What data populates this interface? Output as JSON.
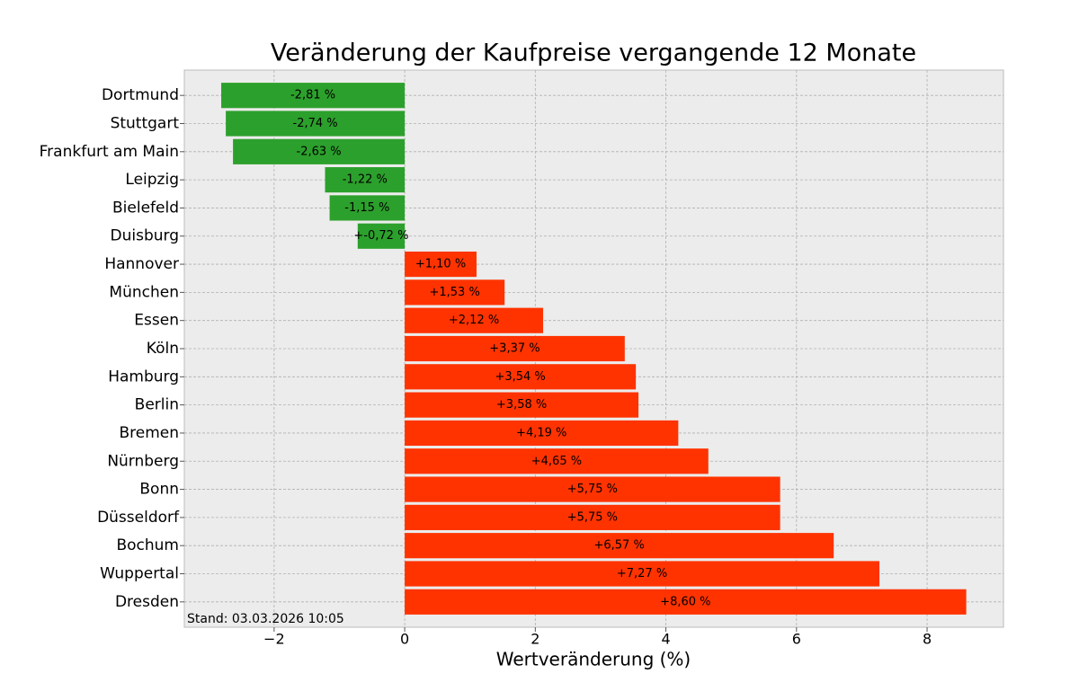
{
  "chart_data": {
    "type": "barh",
    "title": "Veränderung der Kaufpreise vergangende 12 Monate",
    "x_label": "Wertveränderung (%)",
    "annotation": "Stand: 03.03.2026 10:05",
    "categories": [
      "Dortmund",
      "Stuttgart",
      "Frankfurt am Main",
      "Leipzig",
      "Bielefeld",
      "Duisburg",
      "Hannover",
      "München",
      "Essen",
      "Köln",
      "Hamburg",
      "Berlin",
      "Bremen",
      "Nürnberg",
      "Bonn",
      "Düsseldorf",
      "Bochum",
      "Wuppertal",
      "Dresden"
    ],
    "values": [
      -2.81,
      -2.74,
      -2.63,
      -1.22,
      -1.15,
      -0.72,
      1.1,
      1.53,
      2.12,
      3.37,
      3.54,
      3.58,
      4.19,
      4.65,
      5.75,
      5.75,
      6.57,
      7.27,
      8.6
    ],
    "value_labels": [
      "-2,81 %",
      "-2,74 %",
      "-2,63 %",
      "-1,22 %",
      "-1,15 %",
      "+-0,72 %",
      "+1,10 %",
      "+1,53 %",
      "+2,12 %",
      "+3,37 %",
      "+3,54 %",
      "+3,58 %",
      "+4,19 %",
      "+4,65 %",
      "+5,75 %",
      "+5,75 %",
      "+6,57 %",
      "+7,27 %",
      "+8,60 %"
    ],
    "colors": [
      "#2ca02c",
      "#2ca02c",
      "#2ca02c",
      "#2ca02c",
      "#2ca02c",
      "#2ca02c",
      "#ff3300",
      "#ff3300",
      "#ff3300",
      "#ff3300",
      "#ff3300",
      "#ff3300",
      "#ff3300",
      "#ff3300",
      "#ff3300",
      "#ff3300",
      "#ff3300",
      "#ff3300",
      "#ff3300"
    ],
    "xlim": [
      -3.375,
      9.17
    ],
    "xticks": [
      {
        "value": -2,
        "label": "−2"
      },
      0,
      2,
      4,
      6,
      8
    ],
    "grid": true
  }
}
